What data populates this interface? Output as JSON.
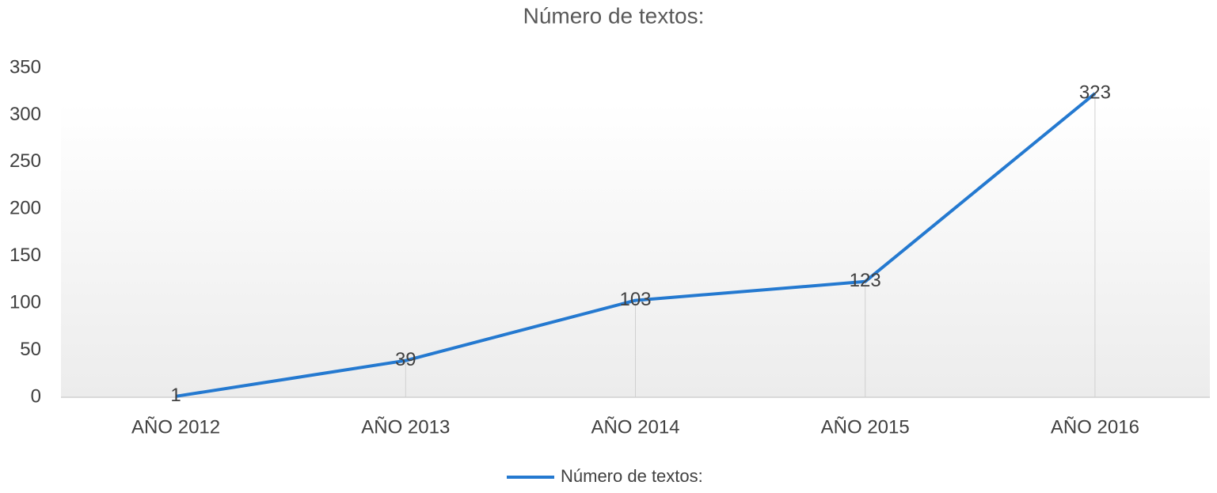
{
  "chart_data": {
    "type": "line",
    "title": "Número de textos:",
    "categories": [
      "AÑO 2012",
      "AÑO 2013",
      "AÑO 2014",
      "AÑO 2015",
      "AÑO 2016"
    ],
    "series": [
      {
        "name": "Número de textos:",
        "color": "#2479d0",
        "values": [
          1,
          39,
          103,
          123,
          323
        ]
      }
    ],
    "ylim": [
      0,
      350
    ],
    "yticks": [
      0,
      50,
      100,
      150,
      200,
      250,
      300,
      350
    ],
    "grid": false,
    "drop_lines": true,
    "data_labels": true,
    "legend": "bottom"
  }
}
